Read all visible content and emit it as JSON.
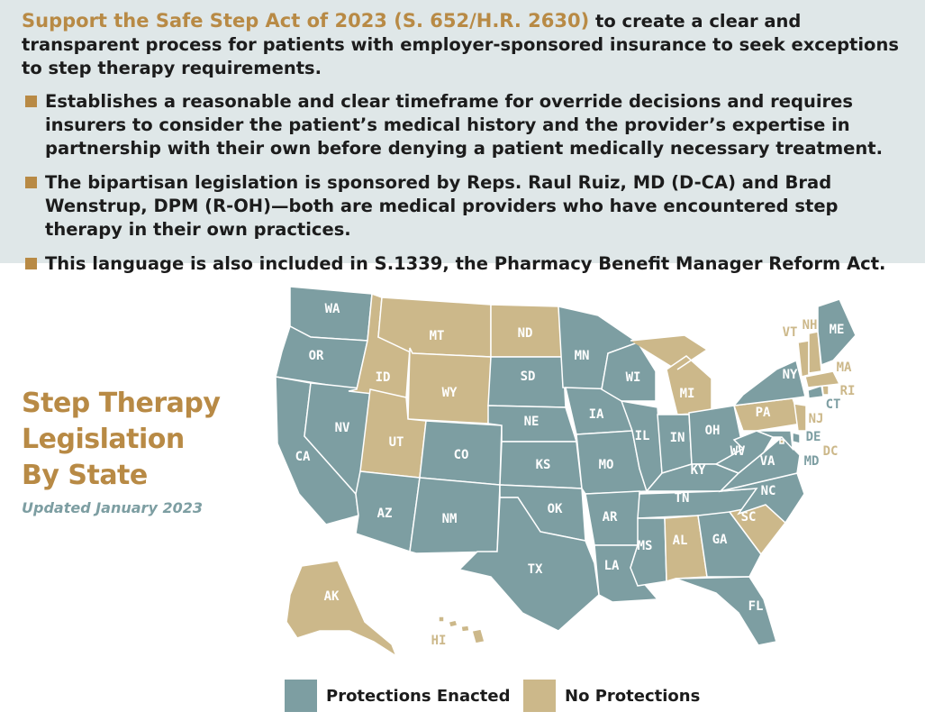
{
  "header": {
    "headline_highlight": "Support the Safe Step Act of 2023 (S. 652/H.R. 2630)",
    "headline_rest": "to create a clear and transparent process for patients with employer-sponsored insurance to seek exceptions to step therapy requirements."
  },
  "bullets": [
    "Establishes a reasonable and clear timeframe for override decisions and requires insurers to consider the patient’s medical history and the provider’s expertise in partnership with their own before denying a patient medically necessary treatment.",
    "The bipartisan legislation is sponsored by Reps. Raul Ruiz, MD (D-CA) and Brad Wenstrup, DPM (R-OH)—both are medical providers who have encountered step therapy in their own practices.",
    "This language is also included in S.1339, the Pharmacy Benefit Manager Reform Act."
  ],
  "map": {
    "title_line1": "Step Therapy",
    "title_line2": "Legislation",
    "title_line3": "By State",
    "updated": "Updated January 2023",
    "colors": {
      "enacted": "#7d9ea2",
      "none": "#ccb88a",
      "accent": "#b88a45"
    },
    "states_enacted": [
      "WA",
      "OR",
      "CA",
      "NV",
      "AZ",
      "NM",
      "CO",
      "NE",
      "SD",
      "KS",
      "OK",
      "TX",
      "MN",
      "IA",
      "MO",
      "AR",
      "LA",
      "WI",
      "IL",
      "IN",
      "OH",
      "KY",
      "TN",
      "MS",
      "GA",
      "FL",
      "NC",
      "VA",
      "WV",
      "NY",
      "ME",
      "CT",
      "DE",
      "MD"
    ],
    "states_none": [
      "MT",
      "ID",
      "WY",
      "UT",
      "ND",
      "MI",
      "AL",
      "SC",
      "PA",
      "NJ",
      "VT",
      "NH",
      "MA",
      "RI",
      "DC",
      "AK",
      "HI"
    ],
    "labels": {
      "WA": "WA",
      "OR": "OR",
      "CA": "CA",
      "NV": "NV",
      "ID": "ID",
      "MT": "MT",
      "WY": "WY",
      "UT": "UT",
      "CO": "CO",
      "AZ": "AZ",
      "NM": "NM",
      "ND": "ND",
      "SD": "SD",
      "NE": "NE",
      "KS": "KS",
      "OK": "OK",
      "TX": "TX",
      "MN": "MN",
      "IA": "IA",
      "MO": "MO",
      "AR": "AR",
      "LA": "LA",
      "WI": "WI",
      "IL": "IL",
      "MI": "MI",
      "IN": "IN",
      "OH": "OH",
      "KY": "KY",
      "TN": "TN",
      "MS": "MS",
      "AL": "AL",
      "GA": "GA",
      "FL": "FL",
      "SC": "SC",
      "NC": "NC",
      "VA": "VA",
      "WV": "WV",
      "PA": "PA",
      "NY": "NY",
      "VT": "VT",
      "NH": "NH",
      "ME": "ME",
      "MA": "MA",
      "RI": "RI",
      "CT": "CT",
      "NJ": "NJ",
      "DE": "DE",
      "MD": "MD",
      "DC": "DC",
      "AK": "AK",
      "HI": "HI"
    }
  },
  "legend": {
    "enacted_label": "Protections Enacted",
    "none_label": "No Protections"
  }
}
